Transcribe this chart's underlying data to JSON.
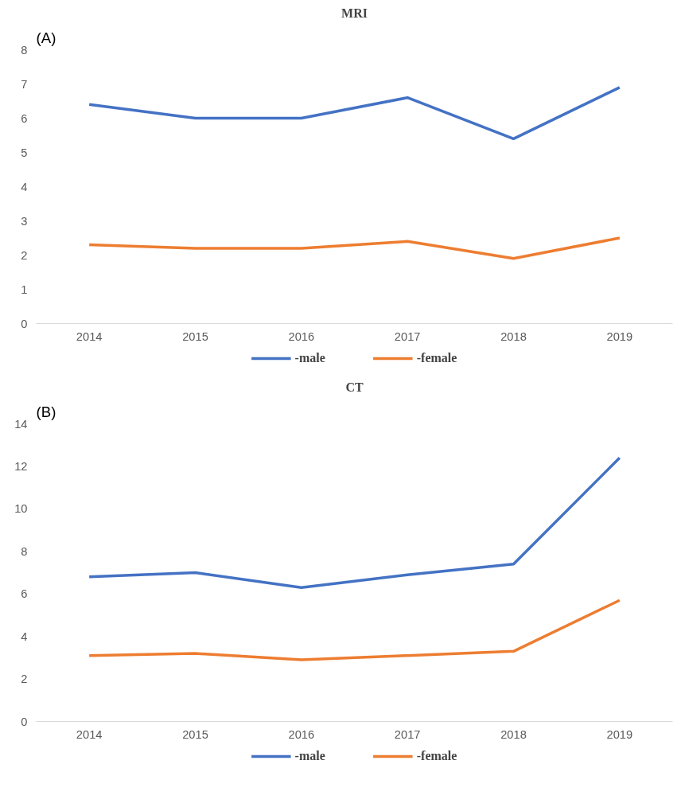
{
  "chart_data": [
    {
      "type": "line",
      "title": "MRI",
      "annotations": [
        "(A)"
      ],
      "categories": [
        "2014",
        "2015",
        "2016",
        "2017",
        "2018",
        "2019"
      ],
      "series": [
        {
          "name": "-male",
          "color": "#4472c4",
          "values": [
            6.4,
            6.0,
            6.0,
            6.6,
            5.4,
            6.9
          ]
        },
        {
          "name": "-female",
          "color": "#ed7d31",
          "values": [
            2.3,
            2.2,
            2.2,
            2.4,
            1.9,
            2.5
          ]
        }
      ],
      "ylim": [
        0,
        8
      ],
      "yticks": [
        0,
        1,
        2,
        3,
        4,
        5,
        6,
        7,
        8
      ],
      "grid": false,
      "legend": "bottom",
      "line_style": "solid"
    },
    {
      "type": "line",
      "title": "CT",
      "annotations": [
        "(B)"
      ],
      "categories": [
        "2014",
        "2015",
        "2016",
        "2017",
        "2018",
        "2019"
      ],
      "series": [
        {
          "name": "-male",
          "color": "#4472c4",
          "values": [
            6.8,
            7.0,
            6.3,
            6.9,
            7.4,
            12.4
          ]
        },
        {
          "name": "-female",
          "color": "#ed7d31",
          "values": [
            3.1,
            3.2,
            2.9,
            3.1,
            3.3,
            5.7
          ]
        }
      ],
      "ylim": [
        0,
        14
      ],
      "yticks": [
        0,
        2,
        4,
        6,
        8,
        10,
        12,
        14
      ],
      "grid": false,
      "legend": "bottom",
      "line_style": "solid"
    }
  ]
}
